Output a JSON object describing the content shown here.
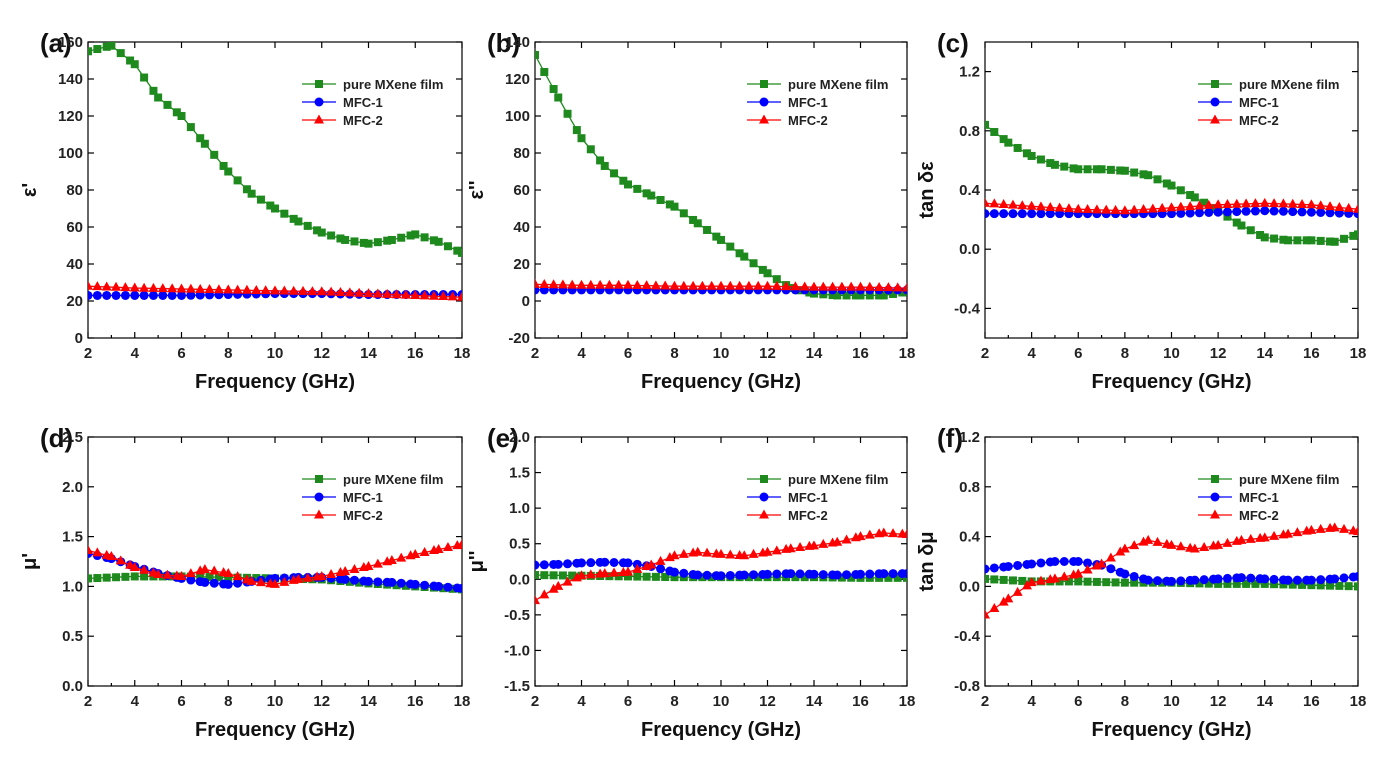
{
  "colors": {
    "pure": "#1e8a1e",
    "mfc1": "#0000ff",
    "mfc2": "#ff0000"
  },
  "chart_data": [
    {
      "panel": "(a)",
      "type": "line",
      "xlabel": "Frequency (GHz)",
      "ylabel": "ε'",
      "xlim": [
        2,
        18
      ],
      "ylim": [
        0,
        160
      ],
      "xticks": [
        2,
        4,
        6,
        8,
        10,
        12,
        14,
        16,
        18
      ],
      "xtick_labels": [
        "2",
        "4",
        "6",
        "8",
        "10",
        "12",
        "14",
        "16",
        "18"
      ],
      "yticks": [
        0,
        20,
        40,
        60,
        80,
        100,
        120,
        140,
        160
      ],
      "ytick_labels": [
        "0",
        "20",
        "40",
        "60",
        "80",
        "100",
        "120",
        "140",
        "160"
      ],
      "legend": [
        "pure MXene film",
        "MFC-1",
        "MFC-2"
      ],
      "series": [
        {
          "name": "pure MXene film",
          "marker": "square",
          "x": [
            2,
            3,
            4,
            5,
            6,
            7,
            8,
            9,
            10,
            11,
            12,
            13,
            14,
            15,
            16,
            17,
            18
          ],
          "y": [
            155,
            158,
            148,
            130,
            120,
            105,
            90,
            78,
            70,
            63,
            57,
            53,
            51,
            53,
            56,
            52,
            46
          ]
        },
        {
          "name": "MFC-1",
          "marker": "circle",
          "x": [
            2,
            4,
            6,
            8,
            10,
            12,
            14,
            16,
            18
          ],
          "y": [
            23,
            23,
            23,
            23.5,
            24,
            24,
            23.5,
            23.5,
            23.5
          ]
        },
        {
          "name": "MFC-2",
          "marker": "triangle",
          "x": [
            2,
            4,
            6,
            8,
            10,
            12,
            14,
            16,
            18
          ],
          "y": [
            28,
            27,
            26.5,
            26,
            25.5,
            25,
            24,
            23,
            22
          ]
        }
      ]
    },
    {
      "panel": "(b)",
      "type": "line",
      "xlabel": "Frequency (GHz)",
      "ylabel": "ε''",
      "xlim": [
        2,
        18
      ],
      "ylim": [
        -20,
        140
      ],
      "xticks": [
        2,
        4,
        6,
        8,
        10,
        12,
        14,
        16,
        18
      ],
      "xtick_labels": [
        "2",
        "4",
        "6",
        "8",
        "10",
        "12",
        "14",
        "16",
        "18"
      ],
      "yticks": [
        -20,
        0,
        20,
        40,
        60,
        80,
        100,
        120,
        140
      ],
      "ytick_labels": [
        "-20",
        "0",
        "20",
        "40",
        "60",
        "80",
        "100",
        "120",
        "140"
      ],
      "legend": [
        "pure MXene film",
        "MFC-1",
        "MFC-2"
      ],
      "series": [
        {
          "name": "pure MXene film",
          "marker": "square",
          "x": [
            2,
            3,
            4,
            5,
            6,
            7,
            8,
            9,
            10,
            11,
            12,
            13,
            14,
            15,
            16,
            17,
            18
          ],
          "y": [
            133,
            110,
            88,
            73,
            63,
            57,
            51,
            42,
            33,
            24,
            15,
            7,
            4,
            3,
            3,
            3,
            5
          ]
        },
        {
          "name": "MFC-1",
          "marker": "circle",
          "x": [
            2,
            4,
            6,
            8,
            10,
            12,
            14,
            16,
            18
          ],
          "y": [
            6,
            6,
            6,
            6,
            6,
            6,
            6,
            6,
            6
          ]
        },
        {
          "name": "MFC-2",
          "marker": "triangle",
          "x": [
            2,
            4,
            6,
            8,
            10,
            12,
            14,
            16,
            18
          ],
          "y": [
            9,
            8.5,
            8.5,
            8,
            8,
            8,
            7.5,
            7.5,
            7
          ]
        }
      ]
    },
    {
      "panel": "(c)",
      "type": "line",
      "xlabel": "Frequency (GHz)",
      "ylabel": "tan δε",
      "xlim": [
        2,
        18
      ],
      "ylim": [
        -0.6,
        1.4
      ],
      "xticks": [
        2,
        4,
        6,
        8,
        10,
        12,
        14,
        16,
        18
      ],
      "xtick_labels": [
        "2",
        "4",
        "6",
        "8",
        "10",
        "12",
        "14",
        "16",
        "18"
      ],
      "yticks": [
        -0.4,
        0.0,
        0.4,
        0.8,
        1.2
      ],
      "ytick_labels": [
        "-0.4",
        "0.0",
        "0.4",
        "0.8",
        "1.2"
      ],
      "legend": [
        "pure MXene film",
        "MFC-1",
        "MFC-2"
      ],
      "series": [
        {
          "name": "pure MXene film",
          "marker": "square",
          "x": [
            2,
            3,
            4,
            5,
            6,
            7,
            8,
            9,
            10,
            11,
            12,
            13,
            14,
            15,
            16,
            17,
            18
          ],
          "y": [
            0.84,
            0.72,
            0.63,
            0.57,
            0.54,
            0.54,
            0.53,
            0.5,
            0.43,
            0.35,
            0.26,
            0.16,
            0.08,
            0.06,
            0.06,
            0.05,
            0.1
          ]
        },
        {
          "name": "MFC-1",
          "marker": "circle",
          "x": [
            2,
            4,
            6,
            8,
            10,
            12,
            14,
            16,
            18
          ],
          "y": [
            0.24,
            0.24,
            0.24,
            0.24,
            0.24,
            0.25,
            0.26,
            0.25,
            0.24
          ]
        },
        {
          "name": "MFC-2",
          "marker": "triangle",
          "x": [
            2,
            4,
            6,
            8,
            10,
            12,
            14,
            16,
            18
          ],
          "y": [
            0.31,
            0.29,
            0.27,
            0.26,
            0.28,
            0.3,
            0.31,
            0.3,
            0.27
          ]
        }
      ]
    },
    {
      "panel": "(d)",
      "type": "line",
      "xlabel": "Frequency (GHz)",
      "ylabel": "μ'",
      "xlim": [
        2,
        18
      ],
      "ylim": [
        0.0,
        2.5
      ],
      "xticks": [
        2,
        4,
        6,
        8,
        10,
        12,
        14,
        16,
        18
      ],
      "xtick_labels": [
        "2",
        "4",
        "6",
        "8",
        "10",
        "12",
        "14",
        "16",
        "18"
      ],
      "yticks": [
        0.0,
        0.5,
        1.0,
        1.5,
        2.0,
        2.5
      ],
      "ytick_labels": [
        "0.0",
        "0.5",
        "1.0",
        "1.5",
        "2.0",
        "2.5"
      ],
      "legend": [
        "pure MXene film",
        "MFC-1",
        "MFC-2"
      ],
      "series": [
        {
          "name": "pure MXene film",
          "marker": "square",
          "x": [
            2,
            4,
            6,
            8,
            10,
            12,
            14,
            16,
            18
          ],
          "y": [
            1.08,
            1.1,
            1.1,
            1.09,
            1.08,
            1.07,
            1.03,
            1.0,
            0.97
          ]
        },
        {
          "name": "MFC-1",
          "marker": "circle",
          "x": [
            2,
            3,
            4,
            5,
            6,
            7,
            8,
            9,
            10,
            11,
            12,
            13,
            14,
            15,
            16,
            17,
            18
          ],
          "y": [
            1.33,
            1.28,
            1.2,
            1.13,
            1.08,
            1.04,
            1.02,
            1.05,
            1.08,
            1.09,
            1.09,
            1.07,
            1.05,
            1.04,
            1.02,
            1.0,
            0.98
          ]
        },
        {
          "name": "MFC-2",
          "marker": "triangle",
          "x": [
            2,
            3,
            4,
            5,
            6,
            7,
            8,
            9,
            10,
            11,
            12,
            13,
            14,
            15,
            16,
            17,
            18
          ],
          "y": [
            1.36,
            1.3,
            1.19,
            1.12,
            1.1,
            1.17,
            1.13,
            1.05,
            1.02,
            1.07,
            1.1,
            1.15,
            1.2,
            1.26,
            1.32,
            1.37,
            1.42
          ]
        }
      ]
    },
    {
      "panel": "(e)",
      "type": "line",
      "xlabel": "Frequency (GHz)",
      "ylabel": "μ''",
      "xlim": [
        2,
        18
      ],
      "ylim": [
        -1.5,
        2.0
      ],
      "xticks": [
        2,
        4,
        6,
        8,
        10,
        12,
        14,
        16,
        18
      ],
      "xtick_labels": [
        "2",
        "4",
        "6",
        "8",
        "10",
        "12",
        "14",
        "16",
        "18"
      ],
      "yticks": [
        -1.5,
        -1.0,
        -0.5,
        0.0,
        0.5,
        1.0,
        1.5,
        2.0
      ],
      "ytick_labels": [
        "-1.5",
        "-1.0",
        "-0.5",
        "0.0",
        "0.5",
        "1.0",
        "1.5",
        "2.0"
      ],
      "legend": [
        "pure MXene film",
        "MFC-1",
        "MFC-2"
      ],
      "series": [
        {
          "name": "pure MXene film",
          "marker": "square",
          "x": [
            2,
            4,
            6,
            8,
            10,
            12,
            14,
            16,
            18
          ],
          "y": [
            0.06,
            0.05,
            0.04,
            0.03,
            0.03,
            0.03,
            0.03,
            0.02,
            0.02
          ]
        },
        {
          "name": "MFC-1",
          "marker": "circle",
          "x": [
            2,
            3,
            4,
            5,
            6,
            7,
            8,
            9,
            10,
            11,
            12,
            13,
            14,
            15,
            16,
            17,
            18
          ],
          "y": [
            0.2,
            0.21,
            0.23,
            0.24,
            0.23,
            0.18,
            0.1,
            0.06,
            0.05,
            0.06,
            0.07,
            0.08,
            0.07,
            0.06,
            0.07,
            0.08,
            0.08
          ]
        },
        {
          "name": "MFC-2",
          "marker": "triangle",
          "x": [
            2,
            3,
            4,
            5,
            6,
            7,
            8,
            9,
            10,
            11,
            12,
            13,
            14,
            15,
            16,
            17,
            18
          ],
          "y": [
            -0.3,
            -0.1,
            0.05,
            0.08,
            0.1,
            0.2,
            0.33,
            0.38,
            0.35,
            0.33,
            0.38,
            0.43,
            0.47,
            0.52,
            0.6,
            0.65,
            0.63
          ]
        }
      ]
    },
    {
      "panel": "(f)",
      "type": "line",
      "xlabel": "Frequency (GHz)",
      "ylabel": "tan δμ",
      "xlim": [
        2,
        18
      ],
      "ylim": [
        -0.8,
        1.2
      ],
      "xticks": [
        2,
        4,
        6,
        8,
        10,
        12,
        14,
        16,
        18
      ],
      "xtick_labels": [
        "2",
        "4",
        "6",
        "8",
        "10",
        "12",
        "14",
        "16",
        "18"
      ],
      "yticks": [
        -0.8,
        -0.4,
        0.0,
        0.4,
        0.8,
        1.2
      ],
      "ytick_labels": [
        "-0.8",
        "-0.4",
        "0.0",
        "0.4",
        "0.8",
        "1.2"
      ],
      "legend": [
        "pure MXene film",
        "MFC-1",
        "MFC-2"
      ],
      "series": [
        {
          "name": "pure MXene film",
          "marker": "square",
          "x": [
            2,
            4,
            6,
            8,
            10,
            12,
            14,
            16,
            18
          ],
          "y": [
            0.06,
            0.04,
            0.04,
            0.03,
            0.03,
            0.02,
            0.02,
            0.01,
            0.0
          ]
        },
        {
          "name": "MFC-1",
          "marker": "circle",
          "x": [
            2,
            3,
            4,
            5,
            6,
            7,
            8,
            9,
            10,
            11,
            12,
            13,
            14,
            15,
            16,
            17,
            18
          ],
          "y": [
            0.14,
            0.16,
            0.18,
            0.2,
            0.2,
            0.17,
            0.1,
            0.05,
            0.04,
            0.05,
            0.06,
            0.07,
            0.06,
            0.05,
            0.05,
            0.06,
            0.08
          ]
        },
        {
          "name": "MFC-2",
          "marker": "triangle",
          "x": [
            2,
            3,
            4,
            5,
            6,
            7,
            8,
            9,
            10,
            11,
            12,
            13,
            14,
            15,
            16,
            17,
            18
          ],
          "y": [
            -0.23,
            -0.1,
            0.03,
            0.06,
            0.1,
            0.18,
            0.3,
            0.37,
            0.33,
            0.3,
            0.33,
            0.37,
            0.39,
            0.42,
            0.45,
            0.47,
            0.44
          ]
        }
      ]
    }
  ]
}
